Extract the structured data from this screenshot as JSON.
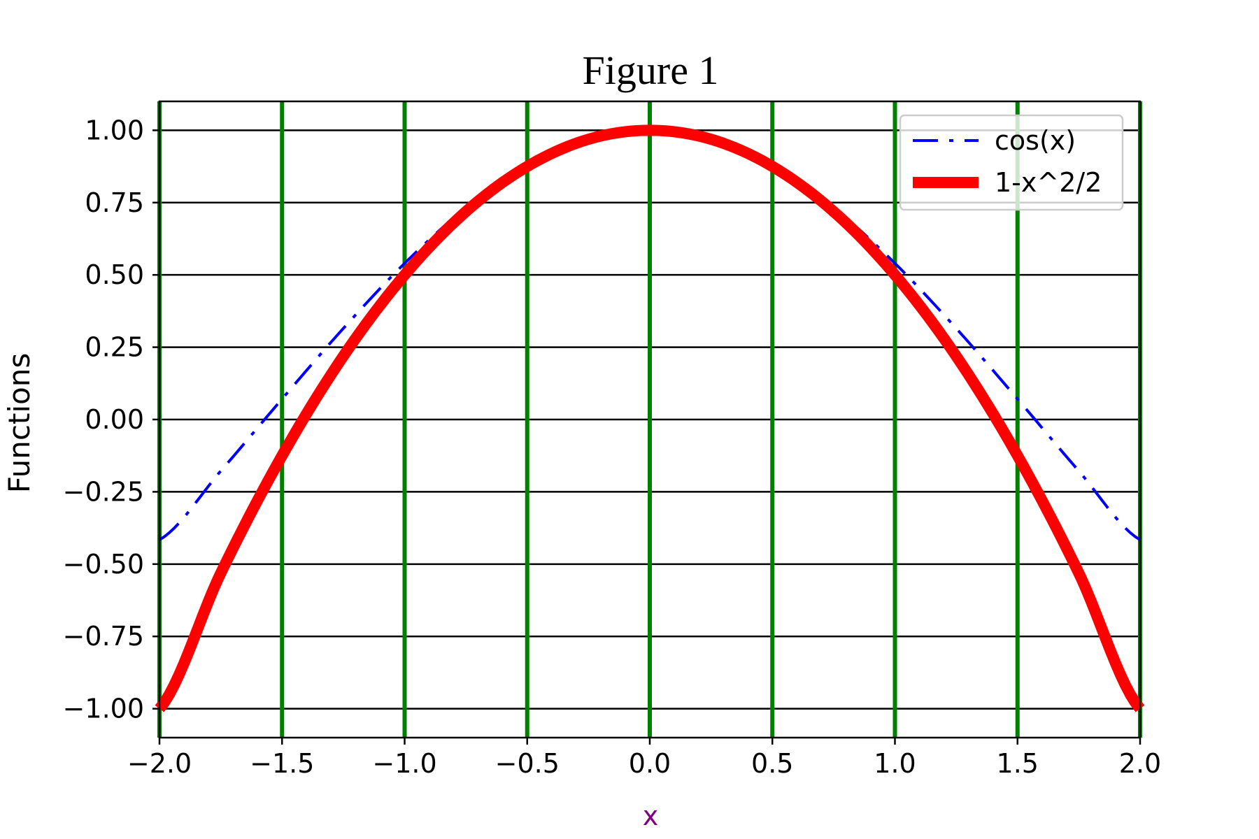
{
  "chart_data": {
    "type": "line",
    "title": "Figure 1",
    "xlabel": "x",
    "ylabel": "Functions",
    "xlim": [
      -2.0,
      2.0
    ],
    "ylim": [
      -1.1,
      1.1
    ],
    "xticks": [
      -2.0,
      -1.5,
      -1.0,
      -0.5,
      0.0,
      0.5,
      1.0,
      1.5,
      2.0
    ],
    "xtick_labels": [
      "−2.0",
      "−1.5",
      "−1.0",
      "−0.5",
      "0.0",
      "0.5",
      "1.0",
      "1.5",
      "2.0"
    ],
    "yticks": [
      1.0,
      0.75,
      0.5,
      0.25,
      0.0,
      -0.25,
      -0.5,
      -0.75,
      -1.0
    ],
    "ytick_labels": [
      "1.00",
      "0.75",
      "0.50",
      "0.25",
      "0.00",
      "−0.25",
      "−0.50",
      "−0.75",
      "−1.00"
    ],
    "grid": {
      "x": true,
      "y": true,
      "x_color": "#008000",
      "y_color": "#000000"
    },
    "legend_position": "upper right",
    "x": [
      -2.0,
      -1.75,
      -1.5,
      -1.25,
      -1.0,
      -0.75,
      -0.5,
      -0.25,
      0.0,
      0.25,
      0.5,
      0.75,
      1.0,
      1.25,
      1.5,
      1.75,
      2.0
    ],
    "series": [
      {
        "name": "cos(x)",
        "color": "#0000ff",
        "style": "dash-dot",
        "values": [
          -0.416,
          -0.178,
          0.071,
          0.315,
          0.54,
          0.732,
          0.878,
          0.969,
          1.0,
          0.969,
          0.878,
          0.732,
          0.54,
          0.315,
          0.071,
          -0.178,
          -0.416
        ]
      },
      {
        "name": "1-x^2/2",
        "color": "#ff0000",
        "style": "solid-thick",
        "values": [
          -1.0,
          -0.531,
          -0.125,
          0.219,
          0.5,
          0.719,
          0.875,
          0.969,
          1.0,
          0.969,
          0.875,
          0.719,
          0.5,
          0.219,
          -0.125,
          -0.531,
          -1.0
        ]
      }
    ],
    "xlabel_color": "#800080"
  }
}
